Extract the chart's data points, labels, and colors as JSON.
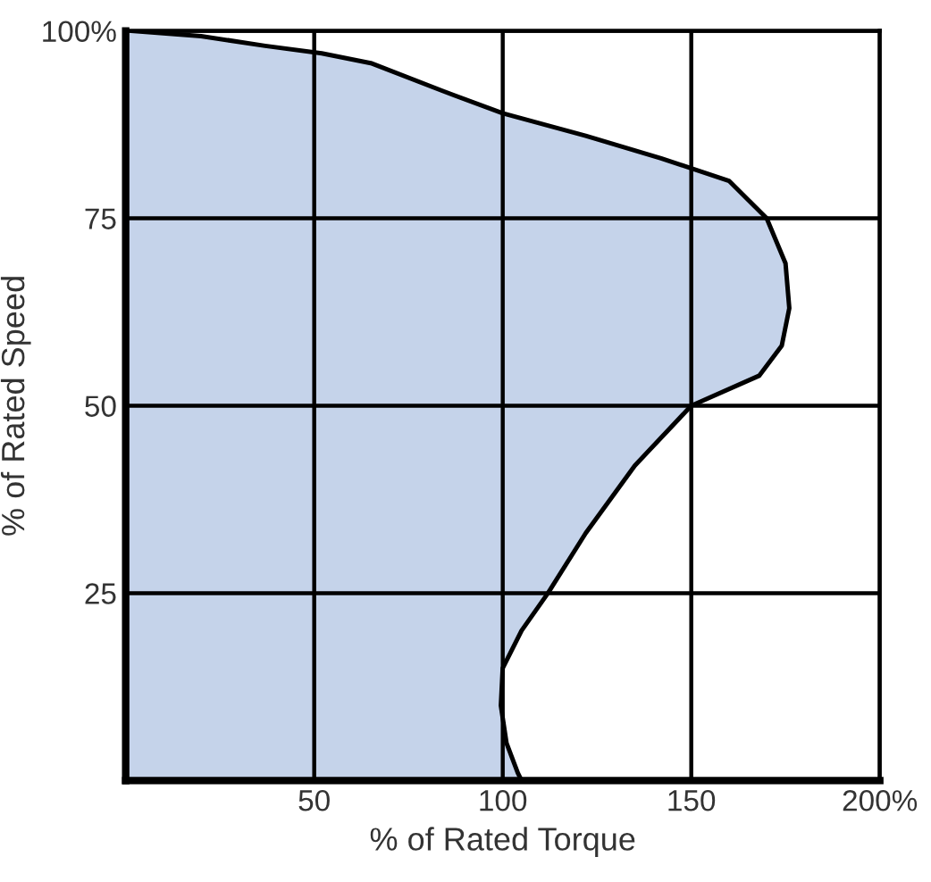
{
  "chart_data": {
    "type": "area",
    "orientation": "horizontal",
    "xlabel": "% of Rated Torque",
    "ylabel": "% of Rated Speed",
    "series": [
      {
        "color": "#c5d3ea",
        "values": [
          2,
          20,
          37,
          52,
          65,
          84,
          100,
          122,
          142,
          160,
          170,
          175,
          176,
          174,
          168,
          150,
          135,
          122,
          112,
          105,
          100,
          99.5,
          101,
          104,
          105
        ],
        "x": [
          100,
          99.3,
          98,
          97,
          95.7,
          92,
          89,
          86,
          83,
          80,
          75,
          69,
          63,
          58,
          54,
          50,
          42,
          33,
          25,
          20,
          15,
          10,
          5,
          1,
          0
        ]
      }
    ],
    "xlim": [
      0,
      200
    ],
    "ylim": [
      0,
      100
    ],
    "xticks": [
      50,
      100,
      150,
      {
        "value": 200,
        "label": "200%"
      }
    ],
    "yticks": [
      25,
      50,
      75,
      {
        "value": 100,
        "label": "100%"
      }
    ],
    "grid": true,
    "legend": false
  }
}
